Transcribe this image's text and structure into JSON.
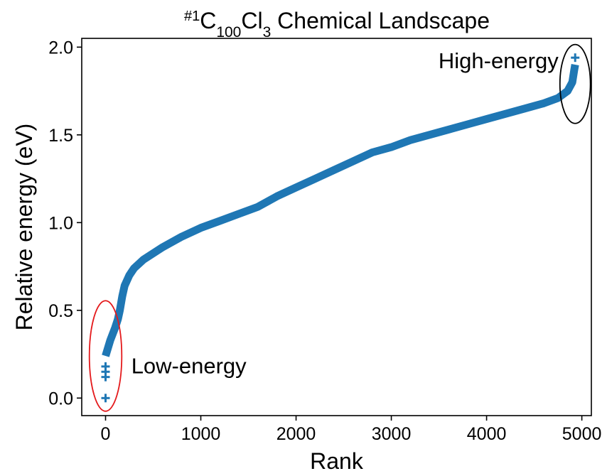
{
  "chart_data": {
    "type": "scatter",
    "title": {
      "pre": "#1",
      "c": "C",
      "c_sub": "100",
      "cl": "Cl",
      "cl_sub": "3",
      "rest": " Chemical Landscape"
    },
    "xlabel": "Rank",
    "ylabel": "Relative energy (eV)",
    "xlim": [
      -250,
      5100
    ],
    "ylim": [
      -0.1,
      2.05
    ],
    "xticks": [
      {
        "value": 0,
        "label": "0"
      },
      {
        "value": 1000,
        "label": "1000"
      },
      {
        "value": 2000,
        "label": "2000"
      },
      {
        "value": 3000,
        "label": "3000"
      },
      {
        "value": 4000,
        "label": "4000"
      },
      {
        "value": 5000,
        "label": "5000"
      }
    ],
    "yticks": [
      {
        "value": 0.0,
        "label": "0.0"
      },
      {
        "value": 0.5,
        "label": "0.5"
      },
      {
        "value": 1.0,
        "label": "1.0"
      },
      {
        "value": 1.5,
        "label": "1.5"
      },
      {
        "value": 2.0,
        "label": "2.0"
      }
    ],
    "grid": false,
    "marker": "plus",
    "series_color": "#1f77b4",
    "curve_knots": [
      [
        0,
        0.24
      ],
      [
        50,
        0.33
      ],
      [
        100,
        0.4
      ],
      [
        130,
        0.45
      ],
      [
        150,
        0.5
      ],
      [
        175,
        0.58
      ],
      [
        200,
        0.64
      ],
      [
        250,
        0.7
      ],
      [
        300,
        0.74
      ],
      [
        400,
        0.79
      ],
      [
        600,
        0.86
      ],
      [
        800,
        0.92
      ],
      [
        1000,
        0.97
      ],
      [
        1200,
        1.01
      ],
      [
        1400,
        1.05
      ],
      [
        1600,
        1.09
      ],
      [
        1800,
        1.15
      ],
      [
        2000,
        1.2
      ],
      [
        2200,
        1.25
      ],
      [
        2400,
        1.3
      ],
      [
        2600,
        1.35
      ],
      [
        2800,
        1.4
      ],
      [
        3000,
        1.43
      ],
      [
        3200,
        1.47
      ],
      [
        3400,
        1.5
      ],
      [
        3600,
        1.53
      ],
      [
        3800,
        1.56
      ],
      [
        4000,
        1.59
      ],
      [
        4200,
        1.62
      ],
      [
        4400,
        1.65
      ],
      [
        4600,
        1.68
      ],
      [
        4750,
        1.71
      ],
      [
        4850,
        1.75
      ],
      [
        4900,
        1.8
      ],
      [
        4920,
        1.87
      ],
      [
        4930,
        1.9
      ]
    ],
    "outliers": [
      {
        "x": 0,
        "y": 0.0
      },
      {
        "x": 0,
        "y": 0.12
      },
      {
        "x": 0,
        "y": 0.15
      },
      {
        "x": 0,
        "y": 0.18
      },
      {
        "x": 4930,
        "y": 1.94
      }
    ],
    "annotations": [
      {
        "text": "Low-energy",
        "x": 270,
        "y": 0.14,
        "anchor": "start"
      },
      {
        "text": "High-energy",
        "x": 4755,
        "y": 1.88,
        "anchor": "end"
      }
    ],
    "highlight_ellipses": [
      {
        "cx": 0,
        "cy": 0.24,
        "rx": 170,
        "ry": 0.315,
        "color": "#e41a1c"
      },
      {
        "cx": 4930,
        "cy": 1.79,
        "rx": 160,
        "ry": 0.225,
        "color": "#000000"
      }
    ]
  }
}
